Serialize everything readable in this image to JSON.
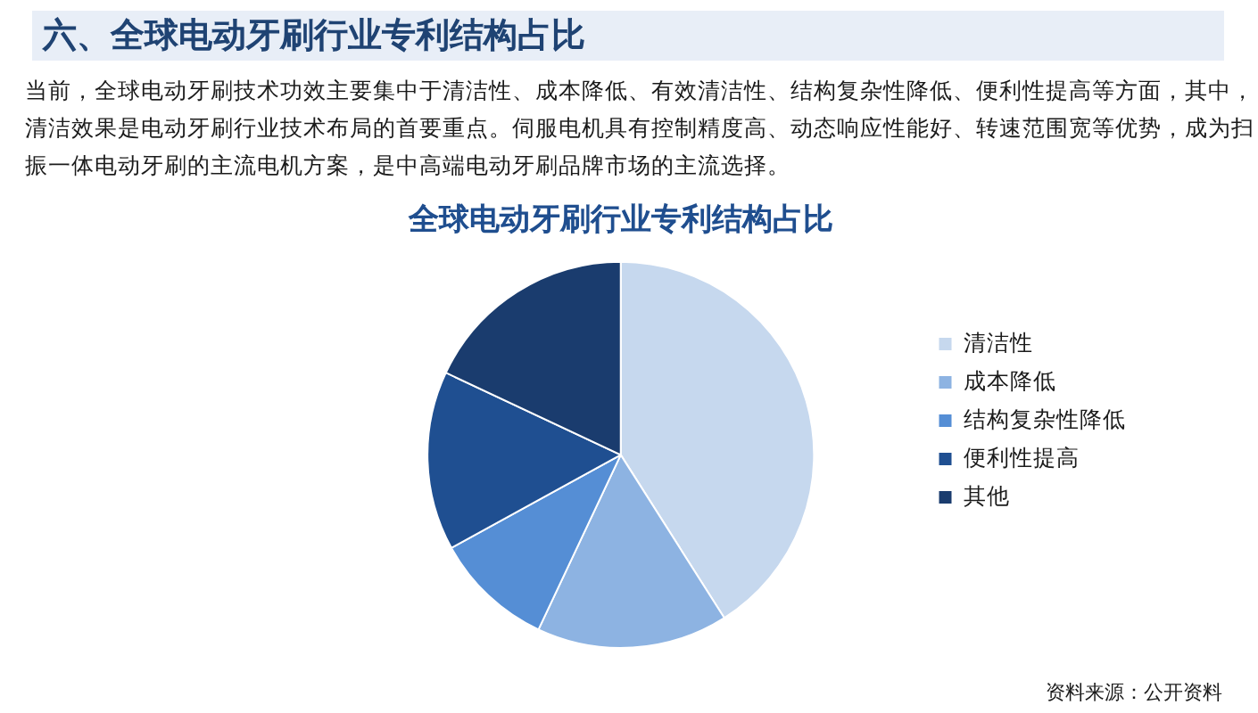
{
  "chart_data": {
    "type": "pie",
    "title": "全球电动牙刷行业专利结构占比",
    "subtitle": "当前，全球电动牙刷技术功效主要集中于清洁性、成本降低、有效清洁性、结构复杂性降低、便利性提高等方面，其中，清洁效果是电动牙刷行业技术布局的首要重点。伺服电机具有控制精度高、动态响应性能好、转速范围宽等优势，成为扫振一体电动牙刷的主流电机方案，是中高端电动牙刷品牌市场的主流选择。",
    "annotations": [
      "六、全球电动牙刷行业专利结构占比",
      "资料来源：公开资料"
    ],
    "categories": [
      "清洁性",
      "成本降低",
      "结构复杂性降低",
      "便利性提高",
      "其他"
    ],
    "values": [
      41,
      16,
      10,
      15,
      18
    ],
    "colors": [
      "#c6d8ee",
      "#8db3e2",
      "#558ed5",
      "#1f4f91",
      "#1a3c6e"
    ],
    "legend": "right"
  }
}
